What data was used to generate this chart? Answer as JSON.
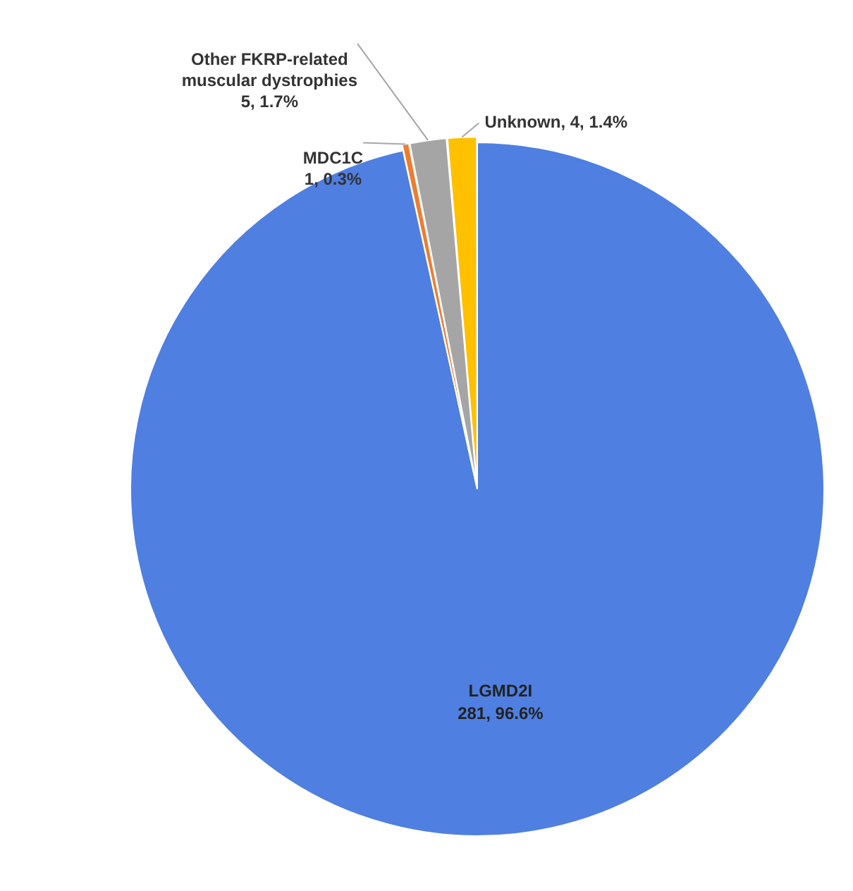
{
  "chart_data": {
    "type": "pie",
    "categories": [
      "LGMD2I",
      "MDC1C",
      "Other FKRP-related muscular dystrophies",
      "Unknown"
    ],
    "values": [
      281,
      1,
      5,
      4
    ],
    "colors": [
      "#4f7fe0",
      "#ed7d31",
      "#a5a5a5",
      "#ffc000"
    ],
    "value_labels": [
      "281, 96.6%",
      "1, 0.3%",
      "5, 1.7%",
      "4, 1.4%"
    ],
    "legend": false
  }
}
